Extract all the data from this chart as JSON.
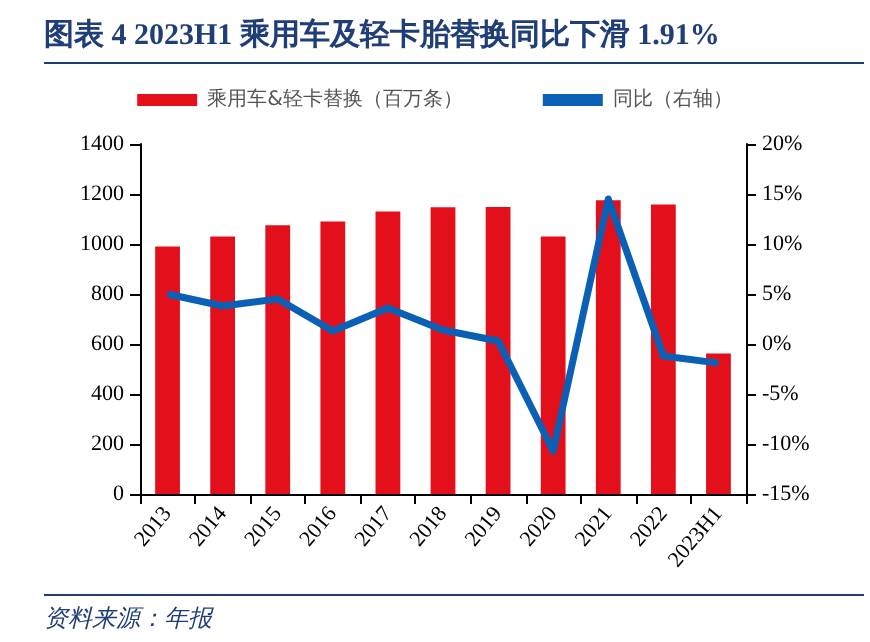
{
  "chart_data": {
    "type": "bar",
    "title": "图表 4   2023H1 乘用车及轻卡胎替换同比下滑 1.91%",
    "categories": [
      "2013",
      "2014",
      "2015",
      "2016",
      "2017",
      "2018",
      "2019",
      "2020",
      "2021",
      "2022",
      "2023H1"
    ],
    "series": [
      {
        "name": "乘用车&轻卡替换（百万条）",
        "color": "#e3101c",
        "values": [
          990,
          1030,
          1075,
          1090,
          1130,
          1147,
          1148,
          1030,
          1175,
          1158,
          562
        ]
      },
      {
        "name": "同比（右轴）",
        "type": "line",
        "axis": "y2",
        "color": "#0a60b5",
        "values": [
          5.0,
          3.8,
          4.5,
          1.3,
          3.6,
          1.4,
          0.3,
          -10.7,
          14.5,
          -1.2,
          -1.91
        ]
      }
    ],
    "ylim": [
      0,
      1400
    ],
    "yticks": [
      0,
      200,
      400,
      600,
      800,
      1000,
      1200,
      1400
    ],
    "y2lim": [
      -15,
      20
    ],
    "y2ticks": [
      {
        "value": -15,
        "label": "-15%"
      },
      {
        "value": -10,
        "label": "-10%"
      },
      {
        "value": -5,
        "label": "-5%"
      },
      {
        "value": 0,
        "label": "0%"
      },
      {
        "value": 5,
        "label": "5%"
      },
      {
        "value": 10,
        "label": "10%"
      },
      {
        "value": 15,
        "label": "15%"
      },
      {
        "value": 20,
        "label": "20%"
      }
    ],
    "legend": "top",
    "grid": false,
    "marker": "none",
    "annotations": [
      "资料来源：年报"
    ]
  }
}
